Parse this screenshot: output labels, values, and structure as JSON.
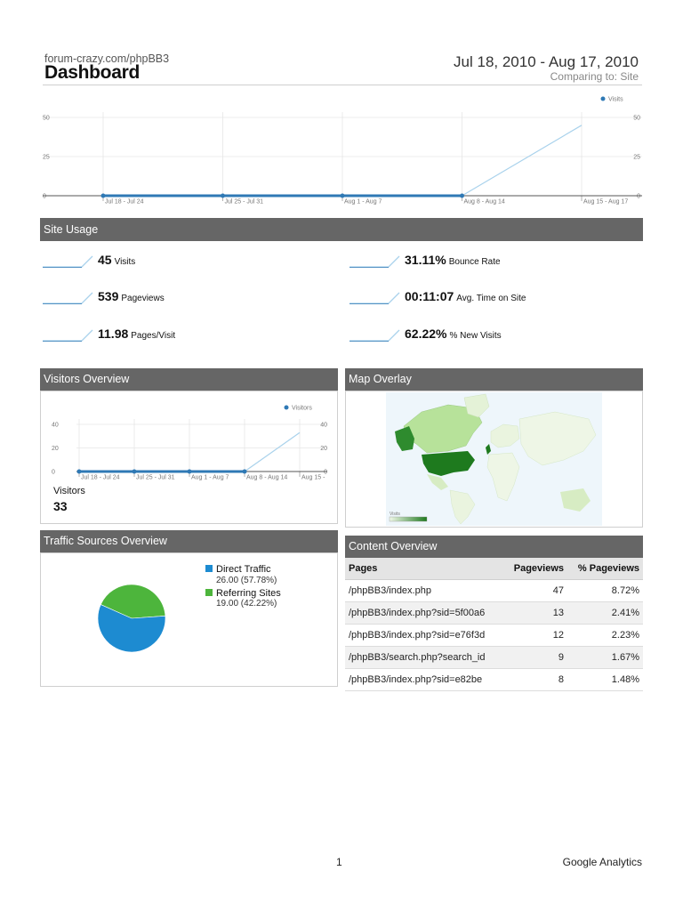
{
  "header": {
    "site": "forum-crazy.com/phpBB3",
    "title": "Dashboard",
    "date_range": "Jul 18, 2010 - Aug 17, 2010",
    "comparing": "Comparing to: Site"
  },
  "colors": {
    "series_dark": "#2f79b5",
    "series_light": "#a9d2ec",
    "panel_header": "#666666",
    "pie_direct": "#1d8bd1",
    "pie_referring": "#4db53c"
  },
  "chart_data": [
    {
      "id": "visits_main",
      "type": "line",
      "categories": [
        "Jul 18 - Jul 24",
        "Jul 25 - Jul 31",
        "Aug 1 - Aug 7",
        "Aug 8 - Aug 14",
        "Aug 15 - Aug 17"
      ],
      "series": [
        {
          "name": "Visits",
          "values": [
            0,
            0,
            0,
            0,
            45
          ]
        }
      ],
      "ylim": [
        0,
        50
      ],
      "yticks": [
        "50",
        "25",
        "0"
      ],
      "grid": true,
      "legend": "top-right"
    },
    {
      "id": "visitors_overview",
      "type": "line",
      "categories": [
        "Jul 18 - Jul 24",
        "Jul 25 - Jul 31",
        "Aug 1 - Aug 7",
        "Aug 8 - Aug 14",
        "Aug 15 -"
      ],
      "series": [
        {
          "name": "Visitors",
          "values": [
            0,
            0,
            0,
            0,
            33
          ]
        }
      ],
      "ylim": [
        0,
        40
      ],
      "yticks": [
        "40",
        "20",
        "0"
      ],
      "grid": true,
      "legend": "top-right"
    },
    {
      "id": "traffic_sources",
      "type": "pie",
      "slices": [
        {
          "name": "Direct Traffic",
          "value": 26.0,
          "detail": "26.00 (57.78%)"
        },
        {
          "name": "Referring Sites",
          "value": 19.0,
          "detail": "19.00 (42.22%)"
        }
      ],
      "legend": "right"
    }
  ],
  "site_usage": {
    "title": "Site Usage",
    "metrics": [
      {
        "value": "45",
        "label": "Visits"
      },
      {
        "value": "31.11%",
        "label": "Bounce Rate"
      },
      {
        "value": "539",
        "label": "Pageviews"
      },
      {
        "value": "00:11:07",
        "label": "Avg. Time on Site"
      },
      {
        "value": "11.98",
        "label": "Pages/Visit"
      },
      {
        "value": "62.22%",
        "label": "% New Visits"
      }
    ]
  },
  "visitors_overview": {
    "title": "Visitors Overview",
    "label": "Visitors",
    "value": "33"
  },
  "map_overlay": {
    "title": "Map Overlay",
    "legend_label": "Visits"
  },
  "traffic_sources": {
    "title": "Traffic Sources Overview"
  },
  "content_overview": {
    "title": "Content Overview",
    "columns": [
      "Pages",
      "Pageviews",
      "% Pageviews"
    ],
    "rows": [
      {
        "page": "/phpBB3/index.php",
        "pageviews": "47",
        "pct": "8.72%"
      },
      {
        "page": "/phpBB3/index.php?sid=5f00a6",
        "pageviews": "13",
        "pct": "2.41%"
      },
      {
        "page": "/phpBB3/index.php?sid=e76f3d",
        "pageviews": "12",
        "pct": "2.23%"
      },
      {
        "page": "/phpBB3/search.php?search_id",
        "pageviews": "9",
        "pct": "1.67%"
      },
      {
        "page": "/phpBB3/index.php?sid=e82be",
        "pageviews": "8",
        "pct": "1.48%"
      }
    ]
  },
  "footer": {
    "page_number": "1",
    "brand": "Google Analytics"
  }
}
